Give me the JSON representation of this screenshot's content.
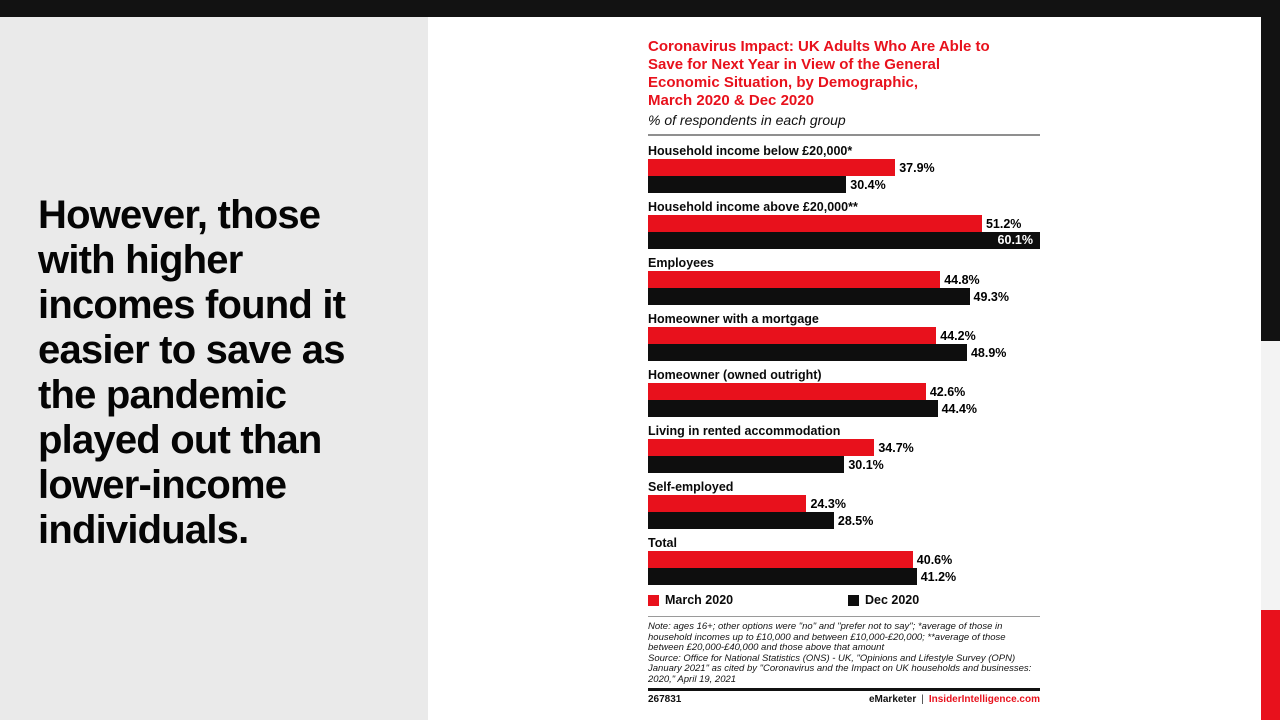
{
  "slide": {
    "headline": "However, those\nwith higher\nincomes found it\neasier to save as\nthe pandemic\nplayed out than\nlower-income\nindividuals."
  },
  "chart": {
    "title": "Coronavirus Impact: UK Adults Who Are Able to\nSave for Next Year in View of the General\nEconomic Situation, by Demographic,\nMarch 2020 & Dec 2020",
    "subtitle": "% of respondents in each group",
    "note": "Note: ages 16+; other options were \"no\" and \"prefer not to say\"; *average of those in\nhousehold incomes up to £10,000 and between £10,000-£20,000; **average of those\nbetween £20,000-£40,000 and those above that amount\nSource: Office for National Statistics (ONS) - UK, \"Opinions and Lifestyle Survey (OPN)\nJanuary 2021\" as cited by \"Coronavirus and the Impact on UK households and businesses:\n2020,\" April 19, 2021",
    "footer_id": "267831",
    "brand": "eMarketer",
    "brand_separator": "|",
    "brand_site": "InsiderIntelligence.com"
  },
  "colors": {
    "accent_red": "#e8111c",
    "bar_black": "#0e0e0e",
    "top_bar": "#121212",
    "left_panel_gray": "#eaeaea",
    "right_strip_gray": "#f3f3f3"
  },
  "chart_data": {
    "type": "bar",
    "orientation": "horizontal",
    "title": "Coronavirus Impact: UK Adults Who Are Able to Save for Next Year in View of the General Economic Situation, by Demographic, March 2020 & Dec 2020",
    "subtitle": "% of respondents in each group",
    "categories": [
      "Household income below £20,000*",
      "Household income above £20,000**",
      "Employees",
      "Homeowner with a mortgage",
      "Homeowner (owned outright)",
      "Living in rented accommodation",
      "Self-employed",
      "Total"
    ],
    "series": [
      {
        "name": "March 2020",
        "color": "#e8111c",
        "values": [
          37.9,
          51.2,
          44.8,
          44.2,
          42.6,
          34.7,
          24.3,
          40.6
        ]
      },
      {
        "name": "Dec 2020",
        "color": "#0e0e0e",
        "values": [
          30.4,
          60.1,
          49.3,
          48.9,
          44.4,
          30.1,
          28.5,
          41.2
        ]
      }
    ],
    "xlim": [
      0,
      60.1
    ],
    "value_suffix": "%",
    "grid": false,
    "legend_position": "bottom"
  }
}
